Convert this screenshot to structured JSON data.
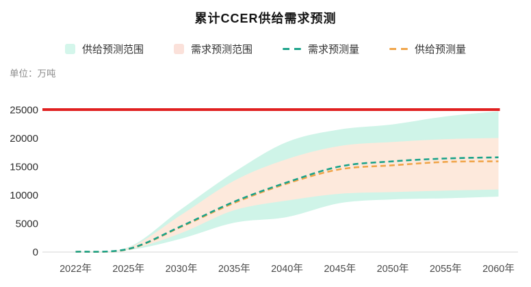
{
  "title": "累计CCER供给需求预测",
  "unit_label": "单位：万吨",
  "legend": {
    "items": [
      {
        "label": "供给预测范围",
        "type": "area",
        "color": "#d4f6eb"
      },
      {
        "label": "需求预测范围",
        "type": "area",
        "color": "#fbe1da"
      },
      {
        "label": "需求预测量",
        "type": "dash",
        "color": "#1aa289"
      },
      {
        "label": "供给预测量",
        "type": "dash",
        "color": "#f0a448"
      }
    ]
  },
  "chart_data": {
    "type": "area",
    "title": "累计CCER供给需求预测",
    "ylabel": "单位：万吨",
    "x_categories": [
      "2022年",
      "2025年",
      "2030年",
      "2035年",
      "2040年",
      "2045年",
      "2050年",
      "2055年",
      "2060年"
    ],
    "y_ticks": [
      0,
      5000,
      10000,
      15000,
      20000,
      25000
    ],
    "ylim": [
      0,
      25000
    ],
    "grid": false,
    "legend_position": "top",
    "reference_line": {
      "value": 25000,
      "color": "#e02020"
    },
    "axis_line_color": "#e3e3e3",
    "series": [
      {
        "name": "供给预测范围",
        "kind": "band",
        "color": "#cff4e8",
        "upper": [
          0,
          800,
          7500,
          14000,
          19300,
          21500,
          22400,
          23800,
          24700
        ],
        "lower": [
          0,
          300,
          2300,
          5100,
          6100,
          8550,
          9200,
          9400,
          9700
        ]
      },
      {
        "name": "需求预测范围",
        "kind": "band",
        "color": "#fde9dc",
        "upper": [
          0,
          700,
          6500,
          12500,
          16300,
          18600,
          19300,
          19800,
          20000
        ],
        "lower": [
          0,
          400,
          3300,
          7300,
          9000,
          10200,
          10500,
          10750,
          10950
        ]
      },
      {
        "name": "供给预测量",
        "kind": "dashed-line",
        "color": "#f0a448",
        "values": [
          0,
          450,
          4400,
          8600,
          12000,
          14500,
          15200,
          15800,
          15900
        ]
      },
      {
        "name": "需求预测量",
        "kind": "dashed-line",
        "color": "#1aa289",
        "values": [
          0,
          500,
          4500,
          8800,
          12200,
          15000,
          15900,
          16400,
          16600
        ]
      }
    ]
  }
}
